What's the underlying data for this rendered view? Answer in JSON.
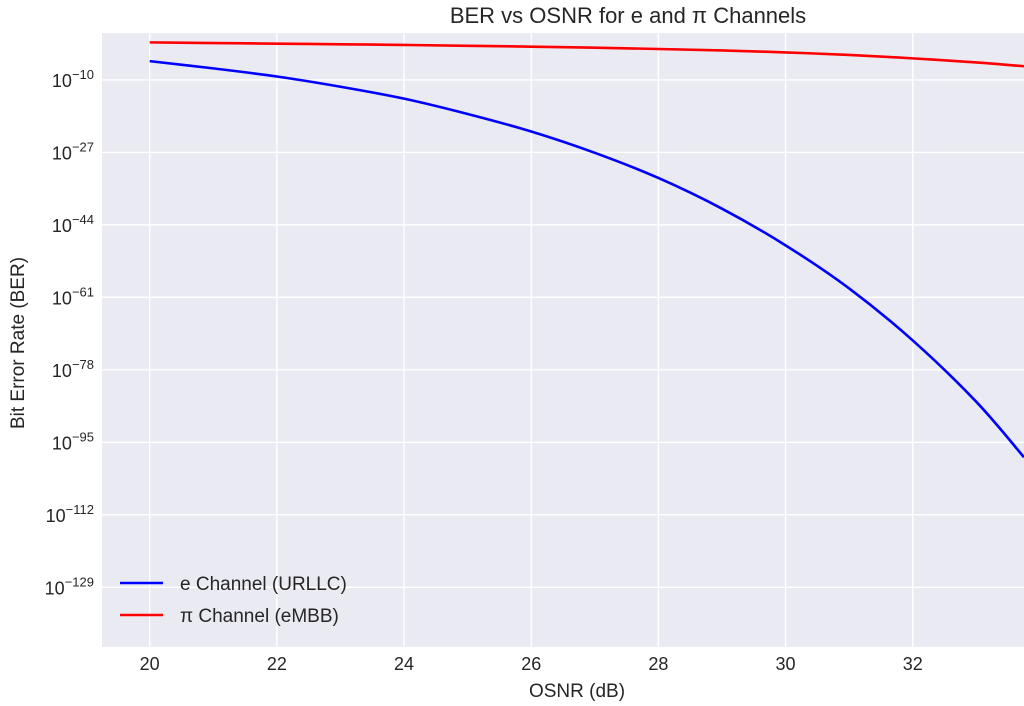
{
  "chart_data": {
    "type": "line",
    "title": "BER vs OSNR for e and π Channels",
    "xlabel": "OSNR (dB)",
    "ylabel": "Bit Error Rate (BER)",
    "yscale": "log",
    "xlim": [
      19.25,
      33.75
    ],
    "ylim_exponent": [
      -143,
      1
    ],
    "xticks": [
      20,
      22,
      24,
      26,
      28,
      30,
      32
    ],
    "yticks": [
      {
        "exponent": -10,
        "base": "10",
        "sup": "−10"
      },
      {
        "exponent": -27,
        "base": "10",
        "sup": "−27"
      },
      {
        "exponent": -44,
        "base": "10",
        "sup": "−44"
      },
      {
        "exponent": -61,
        "base": "10",
        "sup": "−61"
      },
      {
        "exponent": -78,
        "base": "10",
        "sup": "−78"
      },
      {
        "exponent": -95,
        "base": "10",
        "sup": "−95"
      },
      {
        "exponent": -112,
        "base": "10",
        "sup": "−112"
      },
      {
        "exponent": -129,
        "base": "10",
        "sup": "−129"
      }
    ],
    "grid": true,
    "legend_position": "lower-left",
    "series": [
      {
        "name": "e Channel (URLLC)",
        "color": "#0000ff",
        "x": [
          20,
          21,
          22,
          23,
          24,
          25,
          26,
          27,
          28,
          29,
          30,
          31,
          32,
          33,
          33.75
        ],
        "log10_y": [
          -5.6,
          -7.3,
          -9.2,
          -11.6,
          -14.4,
          -18.0,
          -22.1,
          -27.1,
          -33.0,
          -40.2,
          -48.8,
          -58.9,
          -71.1,
          -85.5,
          -98.5
        ]
      },
      {
        "name": "π Channel (eMBB)",
        "color": "#ff0000",
        "x": [
          20,
          21,
          22,
          23,
          24,
          25,
          26,
          27,
          28,
          29,
          30,
          31,
          32,
          33,
          33.75
        ],
        "log10_y": [
          -1.2,
          -1.35,
          -1.5,
          -1.65,
          -1.8,
          -2.0,
          -2.2,
          -2.45,
          -2.75,
          -3.1,
          -3.55,
          -4.15,
          -4.95,
          -5.9,
          -6.8
        ]
      }
    ]
  }
}
